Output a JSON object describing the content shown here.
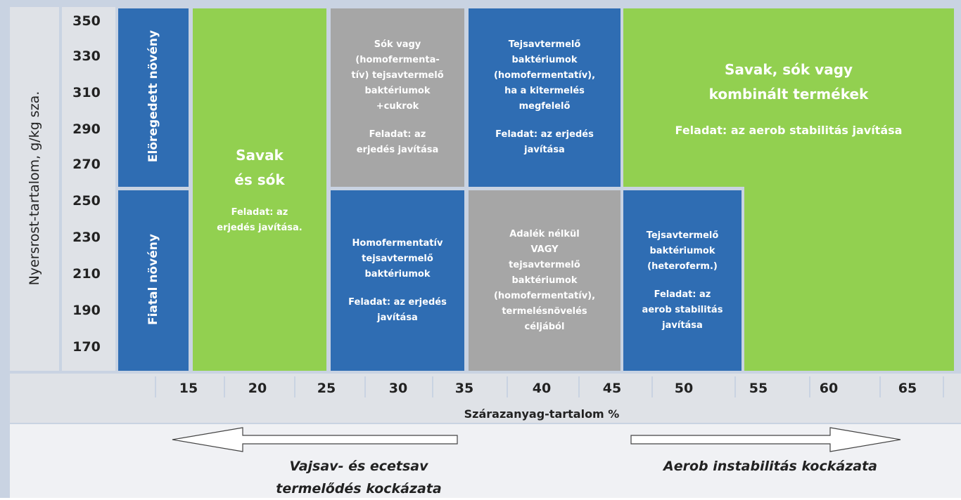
{
  "y_axis": {
    "label": "Nyersrost-tartalom, g/kg sza.",
    "ticks": [
      "350",
      "330",
      "310",
      "290",
      "270",
      "250",
      "230",
      "210",
      "190",
      "170"
    ]
  },
  "x_axis": {
    "label": "Szárazanyag-tartalom %",
    "ticks": [
      "15",
      "20",
      "25",
      "30",
      "35",
      "40",
      "45",
      "50",
      "55",
      "60",
      "65"
    ]
  },
  "row_labels": [
    "Elöregedett növény",
    "Fiatal növény"
  ],
  "cells": [
    {
      "title": [
        "Savak",
        "és sók"
      ],
      "task": [
        "Feladat: az",
        "erjedés javítása."
      ]
    },
    {
      "text": [
        "Sók vagy",
        "(homofermenta-",
        "tív) tejsavtermelő",
        "baktériumok",
        "+cukrok"
      ],
      "task": [
        "Feladat: az",
        "erjedés javítása"
      ]
    },
    {
      "text": [
        "Tejsavtermelő",
        "baktériumok",
        "(homofermentatív),",
        "ha a kitermelés",
        "megfelelő"
      ],
      "task": [
        "Feladat: az erjedés",
        "javítása"
      ]
    },
    {
      "title": [
        "Savak, sók vagy",
        "kombinált termékek"
      ],
      "task": [
        "Feladat: az aerob stabilitás javítása"
      ]
    },
    {
      "text": [
        "Homofermentatív",
        "tejsavtermelő",
        "baktériumok"
      ],
      "task": [
        "Feladat: az erjedés",
        "javítása"
      ]
    },
    {
      "text": [
        "Adalék nélkül",
        "VAGY",
        "tejsavtermelő",
        "baktériumok",
        "(homofermentatív),",
        "termelésnövelés",
        "céljából"
      ]
    },
    {
      "text": [
        "Tejsavtermelő",
        "baktériumok",
        "(heteroferm.)"
      ],
      "task": [
        "Feladat: az",
        "aerob stabilitás",
        "javítása"
      ]
    }
  ],
  "arrows": [
    {
      "lines": [
        "Vajsav- és ecetsav",
        "termelődés kockázata"
      ]
    },
    {
      "lines": [
        "Aerob instabilitás kockázata"
      ]
    }
  ]
}
